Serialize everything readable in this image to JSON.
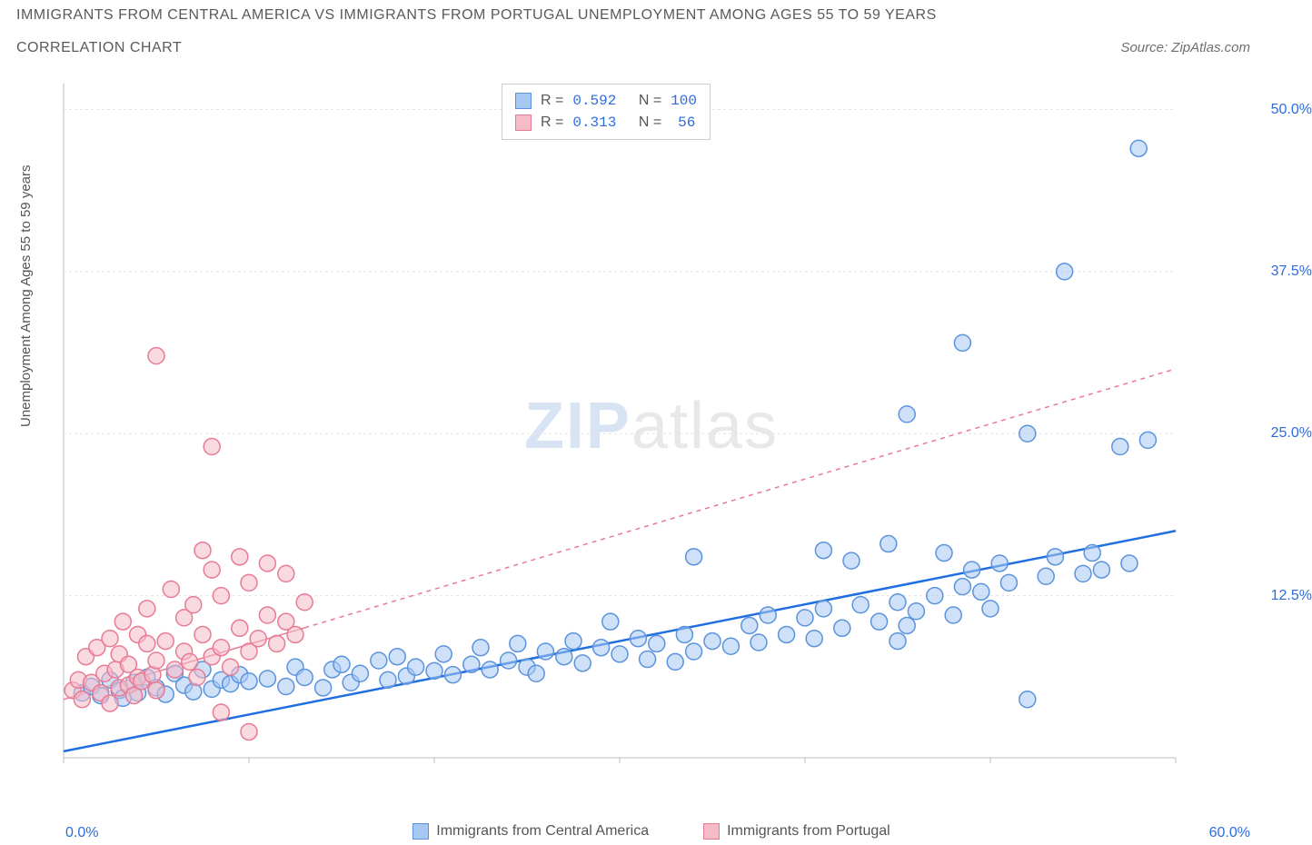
{
  "title_line1": "IMMIGRANTS FROM CENTRAL AMERICA VS IMMIGRANTS FROM PORTUGAL UNEMPLOYMENT AMONG AGES 55 TO 59 YEARS",
  "title_line2": "CORRELATION CHART",
  "source": "Source: ZipAtlas.com",
  "y_axis_label": "Unemployment Among Ages 55 to 59 years",
  "watermark_zip": "ZIP",
  "watermark_atlas": "atlas",
  "chart": {
    "type": "scatter",
    "xlim": [
      0,
      60
    ],
    "ylim": [
      0,
      52
    ],
    "x_ticks_minor": [
      0,
      10,
      20,
      30,
      40,
      50,
      60
    ],
    "y_ticks": [
      12.5,
      25.0,
      37.5,
      50.0
    ],
    "y_tick_labels": [
      "12.5%",
      "25.0%",
      "37.5%",
      "50.0%"
    ],
    "x_min_label": "0.0%",
    "x_max_label": "60.0%",
    "background_color": "#ffffff",
    "grid_color": "#e4e4e4",
    "axis_color": "#bdbdbd",
    "marker_radius": 9,
    "marker_stroke_width": 1.5,
    "series": [
      {
        "name": "Immigrants from Central America",
        "color_fill": "#a7c8f2",
        "color_stroke": "#5b93dd",
        "fill_opacity": 0.55,
        "legend_r_label": "R =",
        "legend_r_value": "0.592",
        "legend_n_label": "N =",
        "legend_n_value": "100",
        "regression": {
          "x1": 0,
          "y1": 0.5,
          "x2": 60,
          "y2": 17.5,
          "dash": null,
          "width": 2.5,
          "color": "#1f6fe0",
          "solid_until_x": 60
        },
        "points": [
          [
            1,
            5
          ],
          [
            1.5,
            5.5
          ],
          [
            2,
            4.8
          ],
          [
            2.5,
            6
          ],
          [
            3,
            5.2
          ],
          [
            3.2,
            4.6
          ],
          [
            3.8,
            5.8
          ],
          [
            4,
            5
          ],
          [
            4.5,
            6.2
          ],
          [
            5,
            5.4
          ],
          [
            5.5,
            4.9
          ],
          [
            6,
            6.5
          ],
          [
            6.5,
            5.6
          ],
          [
            7,
            5.1
          ],
          [
            7.5,
            6.8
          ],
          [
            8,
            5.3
          ],
          [
            8.5,
            6
          ],
          [
            9,
            5.7
          ],
          [
            9.5,
            6.4
          ],
          [
            10,
            5.9
          ],
          [
            11,
            6.1
          ],
          [
            12,
            5.5
          ],
          [
            12.5,
            7
          ],
          [
            13,
            6.2
          ],
          [
            14,
            5.4
          ],
          [
            14.5,
            6.8
          ],
          [
            15,
            7.2
          ],
          [
            15.5,
            5.8
          ],
          [
            16,
            6.5
          ],
          [
            17,
            7.5
          ],
          [
            17.5,
            6
          ],
          [
            18,
            7.8
          ],
          [
            18.5,
            6.3
          ],
          [
            19,
            7
          ],
          [
            20,
            6.7
          ],
          [
            20.5,
            8
          ],
          [
            21,
            6.4
          ],
          [
            22,
            7.2
          ],
          [
            22.5,
            8.5
          ],
          [
            23,
            6.8
          ],
          [
            24,
            7.5
          ],
          [
            24.5,
            8.8
          ],
          [
            25,
            7
          ],
          [
            25.5,
            6.5
          ],
          [
            26,
            8.2
          ],
          [
            27,
            7.8
          ],
          [
            27.5,
            9
          ],
          [
            28,
            7.3
          ],
          [
            29,
            8.5
          ],
          [
            29.5,
            10.5
          ],
          [
            30,
            8
          ],
          [
            31,
            9.2
          ],
          [
            31.5,
            7.6
          ],
          [
            32,
            8.8
          ],
          [
            33,
            7.4
          ],
          [
            33.5,
            9.5
          ],
          [
            34,
            8.2
          ],
          [
            34,
            15.5
          ],
          [
            35,
            9
          ],
          [
            36,
            8.6
          ],
          [
            37,
            10.2
          ],
          [
            37.5,
            8.9
          ],
          [
            38,
            11
          ],
          [
            39,
            9.5
          ],
          [
            40,
            10.8
          ],
          [
            40.5,
            9.2
          ],
          [
            41,
            11.5
          ],
          [
            41,
            16
          ],
          [
            42,
            10
          ],
          [
            42.5,
            15.2
          ],
          [
            43,
            11.8
          ],
          [
            44,
            10.5
          ],
          [
            44.5,
            16.5
          ],
          [
            45,
            12
          ],
          [
            45.5,
            10.2
          ],
          [
            45.5,
            26.5
          ],
          [
            46,
            11.3
          ],
          [
            47,
            12.5
          ],
          [
            47.5,
            15.8
          ],
          [
            48,
            11
          ],
          [
            48.5,
            13.2
          ],
          [
            48.5,
            32
          ],
          [
            49,
            14.5
          ],
          [
            49.5,
            12.8
          ],
          [
            50,
            11.5
          ],
          [
            50.5,
            15
          ],
          [
            51,
            13.5
          ],
          [
            52,
            25
          ],
          [
            53,
            14
          ],
          [
            53.5,
            15.5
          ],
          [
            54,
            37.5
          ],
          [
            55,
            14.2
          ],
          [
            55.5,
            15.8
          ],
          [
            56,
            14.5
          ],
          [
            57,
            24
          ],
          [
            57.5,
            15
          ],
          [
            58,
            47
          ],
          [
            58.5,
            24.5
          ],
          [
            52,
            4.5
          ],
          [
            45,
            9
          ]
        ]
      },
      {
        "name": "Immigrants from Portugal",
        "color_fill": "#f5bcc8",
        "color_stroke": "#e87b94",
        "fill_opacity": 0.55,
        "legend_r_label": "R =",
        "legend_r_value": "0.313",
        "legend_n_label": "N =",
        "legend_n_value": "56",
        "regression": {
          "x1": 0,
          "y1": 4.5,
          "x2": 60,
          "y2": 30,
          "dash": "5,5",
          "width": 1.5,
          "color": "#e87b94",
          "solid_until_x": 13
        },
        "points": [
          [
            0.5,
            5.2
          ],
          [
            0.8,
            6
          ],
          [
            1,
            4.5
          ],
          [
            1.2,
            7.8
          ],
          [
            1.5,
            5.8
          ],
          [
            1.8,
            8.5
          ],
          [
            2,
            5
          ],
          [
            2.2,
            6.5
          ],
          [
            2.5,
            9.2
          ],
          [
            2.5,
            4.2
          ],
          [
            2.8,
            6.8
          ],
          [
            3,
            5.4
          ],
          [
            3,
            8
          ],
          [
            3.2,
            10.5
          ],
          [
            3.5,
            5.6
          ],
          [
            3.5,
            7.2
          ],
          [
            3.8,
            4.8
          ],
          [
            4,
            6.2
          ],
          [
            4,
            9.5
          ],
          [
            4.2,
            5.9
          ],
          [
            4.5,
            8.8
          ],
          [
            4.5,
            11.5
          ],
          [
            4.8,
            6.4
          ],
          [
            5,
            7.5
          ],
          [
            5,
            5.2
          ],
          [
            5.5,
            9
          ],
          [
            5.8,
            13
          ],
          [
            5,
            31
          ],
          [
            6,
            6.8
          ],
          [
            6.5,
            8.2
          ],
          [
            6.5,
            10.8
          ],
          [
            6.8,
            7.4
          ],
          [
            7,
            11.8
          ],
          [
            7.2,
            6.2
          ],
          [
            7.5,
            9.5
          ],
          [
            7.5,
            16
          ],
          [
            8,
            7.8
          ],
          [
            8,
            14.5
          ],
          [
            8,
            24
          ],
          [
            8.5,
            8.5
          ],
          [
            8.5,
            12.5
          ],
          [
            9,
            7
          ],
          [
            9.5,
            10
          ],
          [
            9.5,
            15.5
          ],
          [
            10,
            8.2
          ],
          [
            10,
            13.5
          ],
          [
            10.5,
            9.2
          ],
          [
            11,
            11
          ],
          [
            11,
            15
          ],
          [
            11.5,
            8.8
          ],
          [
            12,
            14.2
          ],
          [
            12,
            10.5
          ],
          [
            12.5,
            9.5
          ],
          [
            13,
            12
          ],
          [
            10,
            2
          ],
          [
            8.5,
            3.5
          ]
        ]
      }
    ]
  },
  "legend_bottom": {
    "item1": "Immigrants from Central America",
    "item2": "Immigrants from Portugal"
  }
}
